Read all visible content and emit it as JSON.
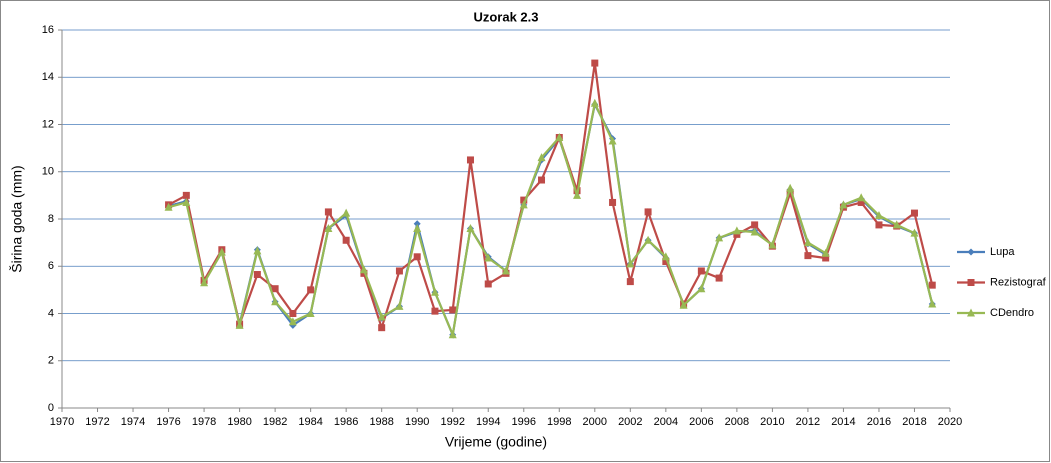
{
  "chart_data": {
    "type": "line",
    "title": "Uzorak 2.3",
    "x_label": "Vrijeme (godine)",
    "y_label": "Širina goda (mm)",
    "x": [
      1976,
      1977,
      1978,
      1979,
      1980,
      1981,
      1982,
      1983,
      1984,
      1985,
      1986,
      1987,
      1988,
      1989,
      1990,
      1991,
      1992,
      1993,
      1994,
      1995,
      1996,
      1997,
      1998,
      1999,
      2000,
      2001,
      2002,
      2003,
      2004,
      2005,
      2006,
      2007,
      2008,
      2009,
      2010,
      2011,
      2012,
      2013,
      2014,
      2015,
      2016,
      2017,
      2018,
      2019
    ],
    "series": [
      {
        "name": "Lupa",
        "color": "#4a7ebb",
        "marker": "diamond",
        "values": [
          8.55,
          8.75,
          5.35,
          6.6,
          3.55,
          6.7,
          4.5,
          3.5,
          4.0,
          7.6,
          8.15,
          5.8,
          3.8,
          4.3,
          7.8,
          4.9,
          3.1,
          7.6,
          6.4,
          5.8,
          8.6,
          10.5,
          11.4,
          9.1,
          12.85,
          11.4,
          6.1,
          7.1,
          6.35,
          4.35,
          5.05,
          7.2,
          7.45,
          7.5,
          6.9,
          9.25,
          6.95,
          6.5,
          8.6,
          8.85,
          8.1,
          7.7,
          7.4,
          4.4
        ]
      },
      {
        "name": "Rezistograf",
        "color": "#be4b48",
        "marker": "square",
        "values": [
          8.6,
          9.0,
          5.4,
          6.7,
          3.55,
          5.65,
          5.05,
          4.0,
          5.0,
          8.3,
          7.1,
          5.7,
          3.4,
          5.8,
          6.4,
          4.1,
          4.15,
          10.5,
          5.25,
          5.7,
          8.8,
          9.65,
          11.45,
          9.2,
          14.6,
          8.7,
          5.35,
          8.3,
          6.2,
          4.4,
          5.8,
          5.5,
          7.35,
          7.75,
          6.85,
          9.1,
          6.45,
          6.35,
          8.5,
          8.7,
          7.75,
          7.7,
          8.25,
          5.2
        ]
      },
      {
        "name": "CDendro",
        "color": "#98b954",
        "marker": "triangle",
        "values": [
          8.5,
          8.7,
          5.3,
          6.6,
          3.5,
          6.65,
          4.5,
          3.65,
          4.0,
          7.6,
          8.25,
          5.85,
          3.85,
          4.3,
          7.6,
          4.9,
          3.1,
          7.6,
          6.35,
          5.8,
          8.6,
          10.6,
          11.45,
          9.0,
          12.9,
          11.3,
          6.1,
          7.1,
          6.4,
          4.35,
          5.05,
          7.2,
          7.5,
          7.45,
          6.9,
          9.3,
          7.0,
          6.55,
          8.6,
          8.9,
          8.15,
          7.75,
          7.4,
          4.4
        ]
      }
    ],
    "xlim": [
      1970,
      2020
    ],
    "xticks": [
      1970,
      1972,
      1974,
      1976,
      1978,
      1980,
      1982,
      1984,
      1986,
      1988,
      1990,
      1992,
      1994,
      1996,
      1998,
      2000,
      2002,
      2004,
      2006,
      2008,
      2010,
      2012,
      2014,
      2016,
      2018,
      2020
    ],
    "ylim": [
      0,
      16
    ],
    "yticks": [
      0,
      2,
      4,
      6,
      8,
      10,
      12,
      14,
      16
    ],
    "grid": true,
    "legend": "right"
  }
}
